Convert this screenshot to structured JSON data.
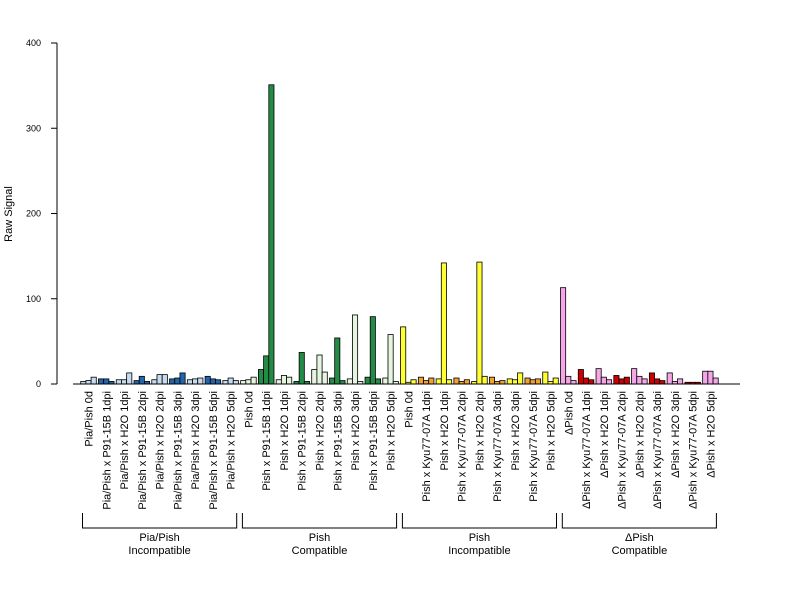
{
  "chart_data": {
    "type": "bar",
    "ylabel": "Raw Signal",
    "ylim": [
      0,
      400
    ],
    "yticks": [
      0,
      100,
      200,
      300,
      400
    ],
    "grid": false,
    "categories": [
      "Pia/Pish 0d",
      "Pia/Pish x P91-15B 1dpi",
      "Pia/Pish x H2O 1dpi",
      "Pia/Pish x P91-15B 2dpi",
      "Pia/Pish x H2O 2dpi",
      "Pia/Pish x P91-15B 3dpi",
      "Pia/Pish x H2O 3dpi",
      "Pia/Pish x P91-15B 5dpi",
      "Pia/Pish x H2O 5dpi",
      "Pish 0d",
      "Pish x P91-15B 1dpi",
      "Pish x H2O 1dpi",
      "Pish x P91-15B 2dpi",
      "Pish x H2O 2dpi",
      "Pish x P91-15B 3dpi",
      "Pish x H2O 3dpi",
      "Pish x P91-15B 5dpi",
      "Pish x H2O 5dpi",
      "Pish 0d",
      "Pish x Kyu77-07A 1dpi",
      "Pish x H2O 1dpi",
      "Pish x Kyu77-07A 2dpi",
      "Pish x H2O 2dpi",
      "Pish x Kyu77-07A 3dpi",
      "Pish x H2O 3dpi",
      "Pish x Kyu77-07A 5dpi",
      "Pish x H2O 5dpi",
      "ΔPish 0d",
      "ΔPish x Kyu77-07A 1dpi",
      "ΔPish x H2O 1dpi",
      "ΔPish x Kyu77-07A 2dpi",
      "ΔPish x H2O 2dpi",
      "ΔPish x Kyu77-07A 3dpi",
      "ΔPish x H2O 3dpi",
      "ΔPish x Kyu77-07A 5dpi",
      "ΔPish x H2O 5dpi"
    ],
    "values": [
      [
        3,
        4,
        8
      ],
      [
        6,
        6,
        3
      ],
      [
        5,
        5,
        13
      ],
      [
        4,
        9,
        3
      ],
      [
        5,
        11,
        11
      ],
      [
        6,
        7,
        13
      ],
      [
        5,
        6,
        7
      ],
      [
        9,
        6,
        5
      ],
      [
        4,
        7,
        4
      ],
      [
        4,
        5,
        8
      ],
      [
        17,
        33,
        351
      ],
      [
        5,
        10,
        8
      ],
      [
        3,
        37,
        3
      ],
      [
        17,
        34,
        14
      ],
      [
        7,
        54,
        4
      ],
      [
        6,
        81,
        3
      ],
      [
        8,
        79,
        6
      ],
      [
        7,
        58,
        3
      ],
      [
        67,
        2,
        5
      ],
      [
        8,
        4,
        7
      ],
      [
        6,
        142,
        5
      ],
      [
        7,
        3,
        5
      ],
      [
        3,
        143,
        9
      ],
      [
        8,
        3,
        4
      ],
      [
        6,
        5,
        13
      ],
      [
        7,
        5,
        6
      ],
      [
        14,
        3,
        7
      ],
      [
        113,
        9,
        4
      ],
      [
        17,
        7,
        5
      ],
      [
        18,
        8,
        5
      ],
      [
        10,
        6,
        8
      ],
      [
        18,
        9,
        6
      ],
      [
        13,
        6,
        4
      ],
      [
        13,
        3,
        6
      ],
      [
        2,
        2,
        2
      ],
      [
        15,
        15,
        7
      ]
    ],
    "bar_colors": [
      [
        "#c6dbef",
        "#c6dbef",
        "#c6dbef"
      ],
      [
        "#2166ac",
        "#2166ac",
        "#2166ac"
      ],
      [
        "#c6dbef",
        "#c6dbef",
        "#c6dbef"
      ],
      [
        "#2166ac",
        "#2166ac",
        "#2166ac"
      ],
      [
        "#c6dbef",
        "#c6dbef",
        "#c6dbef"
      ],
      [
        "#2166ac",
        "#2166ac",
        "#2166ac"
      ],
      [
        "#c6dbef",
        "#c6dbef",
        "#c6dbef"
      ],
      [
        "#2166ac",
        "#2166ac",
        "#2166ac"
      ],
      [
        "#c6dbef",
        "#c6dbef",
        "#c6dbef"
      ],
      [
        "#e5f5e0",
        "#e5f5e0",
        "#e5f5e0"
      ],
      [
        "#238b45",
        "#238b45",
        "#238b45"
      ],
      [
        "#e5f5e0",
        "#e5f5e0",
        "#e5f5e0"
      ],
      [
        "#238b45",
        "#238b45",
        "#238b45"
      ],
      [
        "#e5f5e0",
        "#e5f5e0",
        "#e5f5e0"
      ],
      [
        "#238b45",
        "#238b45",
        "#238b45"
      ],
      [
        "#e5f5e0",
        "#e5f5e0",
        "#e5f5e0"
      ],
      [
        "#238b45",
        "#238b45",
        "#238b45"
      ],
      [
        "#e5f5e0",
        "#e5f5e0",
        "#e5f5e0"
      ],
      [
        "#ffff33",
        "#ffff33",
        "#ffff33"
      ],
      [
        "#f2a230",
        "#f2a230",
        "#f2a230"
      ],
      [
        "#ffff33",
        "#ffff33",
        "#ffff33"
      ],
      [
        "#f2a230",
        "#f2a230",
        "#f2a230"
      ],
      [
        "#ffff33",
        "#ffff33",
        "#ffff33"
      ],
      [
        "#f2a230",
        "#f2a230",
        "#f2a230"
      ],
      [
        "#ffff33",
        "#ffff33",
        "#ffff33"
      ],
      [
        "#f2a230",
        "#f2a230",
        "#f2a230"
      ],
      [
        "#ffff33",
        "#ffff33",
        "#ffff33"
      ],
      [
        "#f4a6e6",
        "#f4a6e6",
        "#f4a6e6"
      ],
      [
        "#cc0000",
        "#cc0000",
        "#cc0000"
      ],
      [
        "#f4a6e6",
        "#f4a6e6",
        "#f4a6e6"
      ],
      [
        "#cc0000",
        "#cc0000",
        "#cc0000"
      ],
      [
        "#f4a6e6",
        "#f4a6e6",
        "#f4a6e6"
      ],
      [
        "#cc0000",
        "#cc0000",
        "#cc0000"
      ],
      [
        "#f4a6e6",
        "#f4a6e6",
        "#f4a6e6"
      ],
      [
        "#cc0000",
        "#cc0000",
        "#cc0000"
      ],
      [
        "#f4a6e6",
        "#f4a6e6",
        "#f4a6e6"
      ]
    ],
    "groups": [
      {
        "line1": "Pia/Pish",
        "line2": "Incompatible",
        "first": 0,
        "last": 8
      },
      {
        "line1": "Pish",
        "line2": "Compatible",
        "first": 9,
        "last": 17
      },
      {
        "line1": "Pish",
        "line2": "Incompatible",
        "first": 18,
        "last": 26
      },
      {
        "line1": "ΔPish",
        "line2": "Compatible",
        "first": 27,
        "last": 35
      }
    ]
  }
}
